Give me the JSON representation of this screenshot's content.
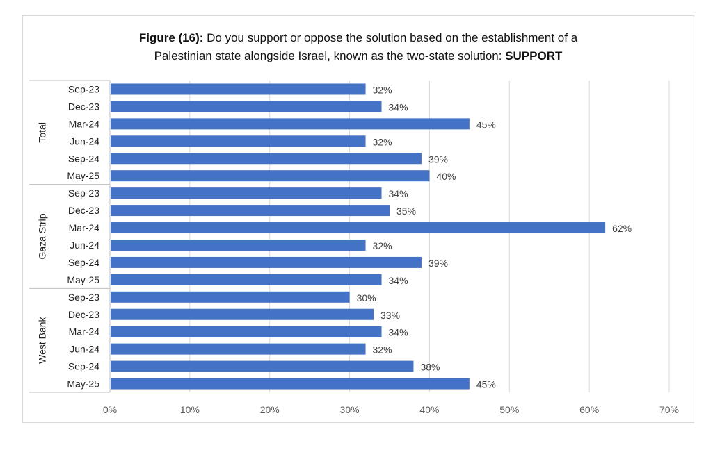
{
  "title": {
    "prefix": "Figure (16):",
    "line1_rest": "Do you support or oppose the solution based on the establishment of a",
    "line2": "Palestinian state alongside Israel, known as the two-state solution:",
    "emphasis": "SUPPORT"
  },
  "chart_data": {
    "type": "bar",
    "orientation": "horizontal",
    "xlim": [
      0,
      70
    ],
    "xticks": [
      "0%",
      "10%",
      "20%",
      "30%",
      "40%",
      "50%",
      "60%",
      "70%"
    ],
    "grid": true,
    "bar_color": "#4472c4",
    "groups": [
      {
        "name": "Total",
        "categories": [
          "Sep-23",
          "Dec-23",
          "Mar-24",
          "Jun-24",
          "Sep-24",
          "May-25"
        ],
        "values": [
          32,
          34,
          45,
          32,
          39,
          40
        ],
        "labels": [
          "32%",
          "34%",
          "45%",
          "32%",
          "39%",
          "40%"
        ]
      },
      {
        "name": "Gaza Strip",
        "categories": [
          "Sep-23",
          "Dec-23",
          "Mar-24",
          "Jun-24",
          "Sep-24",
          "May-25"
        ],
        "values": [
          34,
          35,
          62,
          32,
          39,
          34
        ],
        "labels": [
          "34%",
          "35%",
          "62%",
          "32%",
          "39%",
          "34%"
        ]
      },
      {
        "name": "West Bank",
        "categories": [
          "Sep-23",
          "Dec-23",
          "Mar-24",
          "Jun-24",
          "Sep-24",
          "May-25"
        ],
        "values": [
          30,
          33,
          34,
          32,
          38,
          45
        ],
        "labels": [
          "30%",
          "33%",
          "34%",
          "32%",
          "38%",
          "45%"
        ]
      }
    ]
  }
}
